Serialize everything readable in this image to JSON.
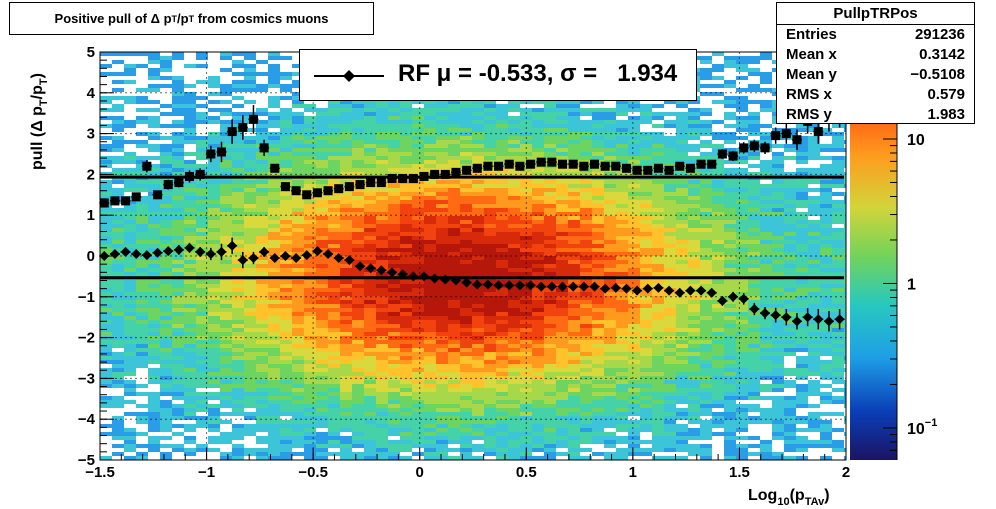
{
  "title": {
    "text": "Positive pull of Δ p",
    "sub1": "T",
    "mid": "/p",
    "sub2": "T",
    "rest": " from cosmics muons"
  },
  "stats": {
    "name": "PullpTRPos",
    "rows": [
      {
        "label": "Entries",
        "value": "291236"
      },
      {
        "label": "Mean x",
        "value": "0.3142"
      },
      {
        "label": "Mean y",
        "value": "−0.5108"
      },
      {
        "label": "RMS x",
        "value": "0.579"
      },
      {
        "label": "RMS y",
        "value": "1.983"
      }
    ]
  },
  "legend": {
    "text": "RF μ = -0.533, σ =   1.934"
  },
  "chart_data": {
    "type": "scatter",
    "title": "Positive pull of Δ pT/pT from cosmics muons",
    "xlabel": "Log10(pTAv)",
    "ylabel": "pull (Δ pT/pT)",
    "xlim": [
      -1.5,
      2
    ],
    "ylim": [
      -5,
      5
    ],
    "x_ticks": [
      "−1.5",
      "−1",
      "−0.5",
      "0",
      "0.5",
      "1",
      "1.5",
      "2"
    ],
    "y_ticks": [
      "−5",
      "−4",
      "−3",
      "−2",
      "−1",
      "0",
      "1",
      "2",
      "3",
      "4",
      "5"
    ],
    "z_ticks": [
      "10−1",
      "1",
      "10"
    ],
    "z_scale": "log",
    "grid": true,
    "mean_line": -0.533,
    "sigma_line": 1.934,
    "background": "2D histogram heat map (log color scale), densest near x=0.2, y=-0.5",
    "mean_series": {
      "x": [
        -1.48,
        -1.43,
        -1.38,
        -1.33,
        -1.28,
        -1.23,
        -1.18,
        -1.13,
        -1.08,
        -1.03,
        -0.98,
        -0.93,
        -0.88,
        -0.83,
        -0.78,
        -0.73,
        -0.68,
        -0.63,
        -0.58,
        -0.53,
        -0.48,
        -0.43,
        -0.38,
        -0.33,
        -0.28,
        -0.23,
        -0.18,
        -0.13,
        -0.08,
        -0.03,
        0.02,
        0.07,
        0.12,
        0.17,
        0.22,
        0.27,
        0.32,
        0.37,
        0.42,
        0.47,
        0.52,
        0.57,
        0.62,
        0.67,
        0.72,
        0.77,
        0.82,
        0.87,
        0.92,
        0.97,
        1.02,
        1.07,
        1.12,
        1.17,
        1.22,
        1.27,
        1.32,
        1.37,
        1.42,
        1.47,
        1.52,
        1.57,
        1.62,
        1.67,
        1.72,
        1.77,
        1.82,
        1.87,
        1.92,
        1.97
      ],
      "y": [
        0.0,
        0.05,
        0.1,
        0.05,
        0.02,
        0.08,
        0.12,
        0.15,
        0.2,
        0.1,
        0.05,
        0.1,
        0.25,
        -0.1,
        -0.05,
        0.1,
        -0.05,
        0.0,
        -0.05,
        0.02,
        0.12,
        0.05,
        -0.05,
        -0.1,
        -0.25,
        -0.3,
        -0.35,
        -0.4,
        -0.45,
        -0.5,
        -0.5,
        -0.55,
        -0.58,
        -0.6,
        -0.65,
        -0.7,
        -0.7,
        -0.72,
        -0.72,
        -0.72,
        -0.72,
        -0.75,
        -0.75,
        -0.75,
        -0.75,
        -0.75,
        -0.75,
        -0.8,
        -0.78,
        -0.8,
        -0.85,
        -0.8,
        -0.78,
        -0.85,
        -0.9,
        -0.85,
        -0.85,
        -0.9,
        -1.1,
        -1.0,
        -1.05,
        -1.3,
        -1.4,
        -1.45,
        -1.5,
        -1.6,
        -1.5,
        -1.55,
        -1.6,
        -1.55
      ],
      "err": [
        0.1,
        0.1,
        0.1,
        0.1,
        0.1,
        0.1,
        0.1,
        0.12,
        0.12,
        0.12,
        0.15,
        0.2,
        0.2,
        0.2,
        0.15,
        0.12,
        0.1,
        0.08,
        0.06,
        0.05,
        0.05,
        0.04,
        0.04,
        0.03,
        0.03,
        0.03,
        0.03,
        0.03,
        0.03,
        0.03,
        0.03,
        0.03,
        0.03,
        0.03,
        0.03,
        0.03,
        0.03,
        0.03,
        0.03,
        0.03,
        0.03,
        0.03,
        0.04,
        0.04,
        0.04,
        0.05,
        0.05,
        0.05,
        0.05,
        0.06,
        0.06,
        0.06,
        0.07,
        0.08,
        0.08,
        0.09,
        0.1,
        0.1,
        0.12,
        0.12,
        0.14,
        0.15,
        0.15,
        0.18,
        0.2,
        0.2,
        0.22,
        0.25,
        0.25,
        0.25
      ]
    },
    "sigma_series": {
      "x": [
        -1.48,
        -1.43,
        -1.38,
        -1.33,
        -1.28,
        -1.23,
        -1.18,
        -1.13,
        -1.08,
        -1.03,
        -0.98,
        -0.93,
        -0.88,
        -0.83,
        -0.78,
        -0.73,
        -0.68,
        -0.63,
        -0.58,
        -0.53,
        -0.48,
        -0.43,
        -0.38,
        -0.33,
        -0.28,
        -0.23,
        -0.18,
        -0.13,
        -0.08,
        -0.03,
        0.02,
        0.07,
        0.12,
        0.17,
        0.22,
        0.27,
        0.32,
        0.37,
        0.42,
        0.47,
        0.52,
        0.57,
        0.62,
        0.67,
        0.72,
        0.77,
        0.82,
        0.87,
        0.92,
        0.97,
        1.02,
        1.07,
        1.12,
        1.17,
        1.22,
        1.27,
        1.32,
        1.37,
        1.42,
        1.47,
        1.52,
        1.57,
        1.62,
        1.67,
        1.72,
        1.77,
        1.82,
        1.87,
        1.92,
        1.97
      ],
      "y": [
        1.3,
        1.35,
        1.35,
        1.45,
        2.2,
        1.5,
        1.75,
        1.8,
        1.95,
        2.0,
        2.5,
        2.55,
        3.05,
        3.15,
        3.35,
        2.65,
        2.15,
        1.7,
        1.6,
        1.5,
        1.55,
        1.6,
        1.65,
        1.7,
        1.75,
        1.8,
        1.8,
        1.9,
        1.9,
        1.9,
        1.95,
        2.0,
        2.0,
        2.05,
        2.1,
        2.15,
        2.2,
        2.2,
        2.25,
        2.2,
        2.25,
        2.3,
        2.3,
        2.25,
        2.25,
        2.2,
        2.25,
        2.2,
        2.2,
        2.15,
        2.1,
        2.1,
        2.15,
        2.1,
        2.2,
        2.15,
        2.25,
        2.25,
        2.5,
        2.45,
        2.65,
        2.7,
        2.65,
        2.95,
        3.0,
        2.85,
        3.3,
        3.05,
        3.4,
        3.5
      ],
      "err": [
        0.1,
        0.1,
        0.1,
        0.1,
        0.15,
        0.1,
        0.12,
        0.12,
        0.15,
        0.15,
        0.2,
        0.25,
        0.3,
        0.3,
        0.35,
        0.2,
        0.1,
        0.08,
        0.06,
        0.05,
        0.05,
        0.04,
        0.04,
        0.03,
        0.03,
        0.03,
        0.03,
        0.03,
        0.03,
        0.03,
        0.03,
        0.03,
        0.03,
        0.03,
        0.03,
        0.03,
        0.03,
        0.03,
        0.03,
        0.03,
        0.03,
        0.03,
        0.04,
        0.04,
        0.04,
        0.05,
        0.05,
        0.05,
        0.05,
        0.06,
        0.06,
        0.06,
        0.07,
        0.08,
        0.08,
        0.09,
        0.1,
        0.1,
        0.12,
        0.12,
        0.14,
        0.15,
        0.15,
        0.2,
        0.25,
        0.25,
        0.3,
        0.3,
        0.35,
        0.35
      ]
    }
  }
}
